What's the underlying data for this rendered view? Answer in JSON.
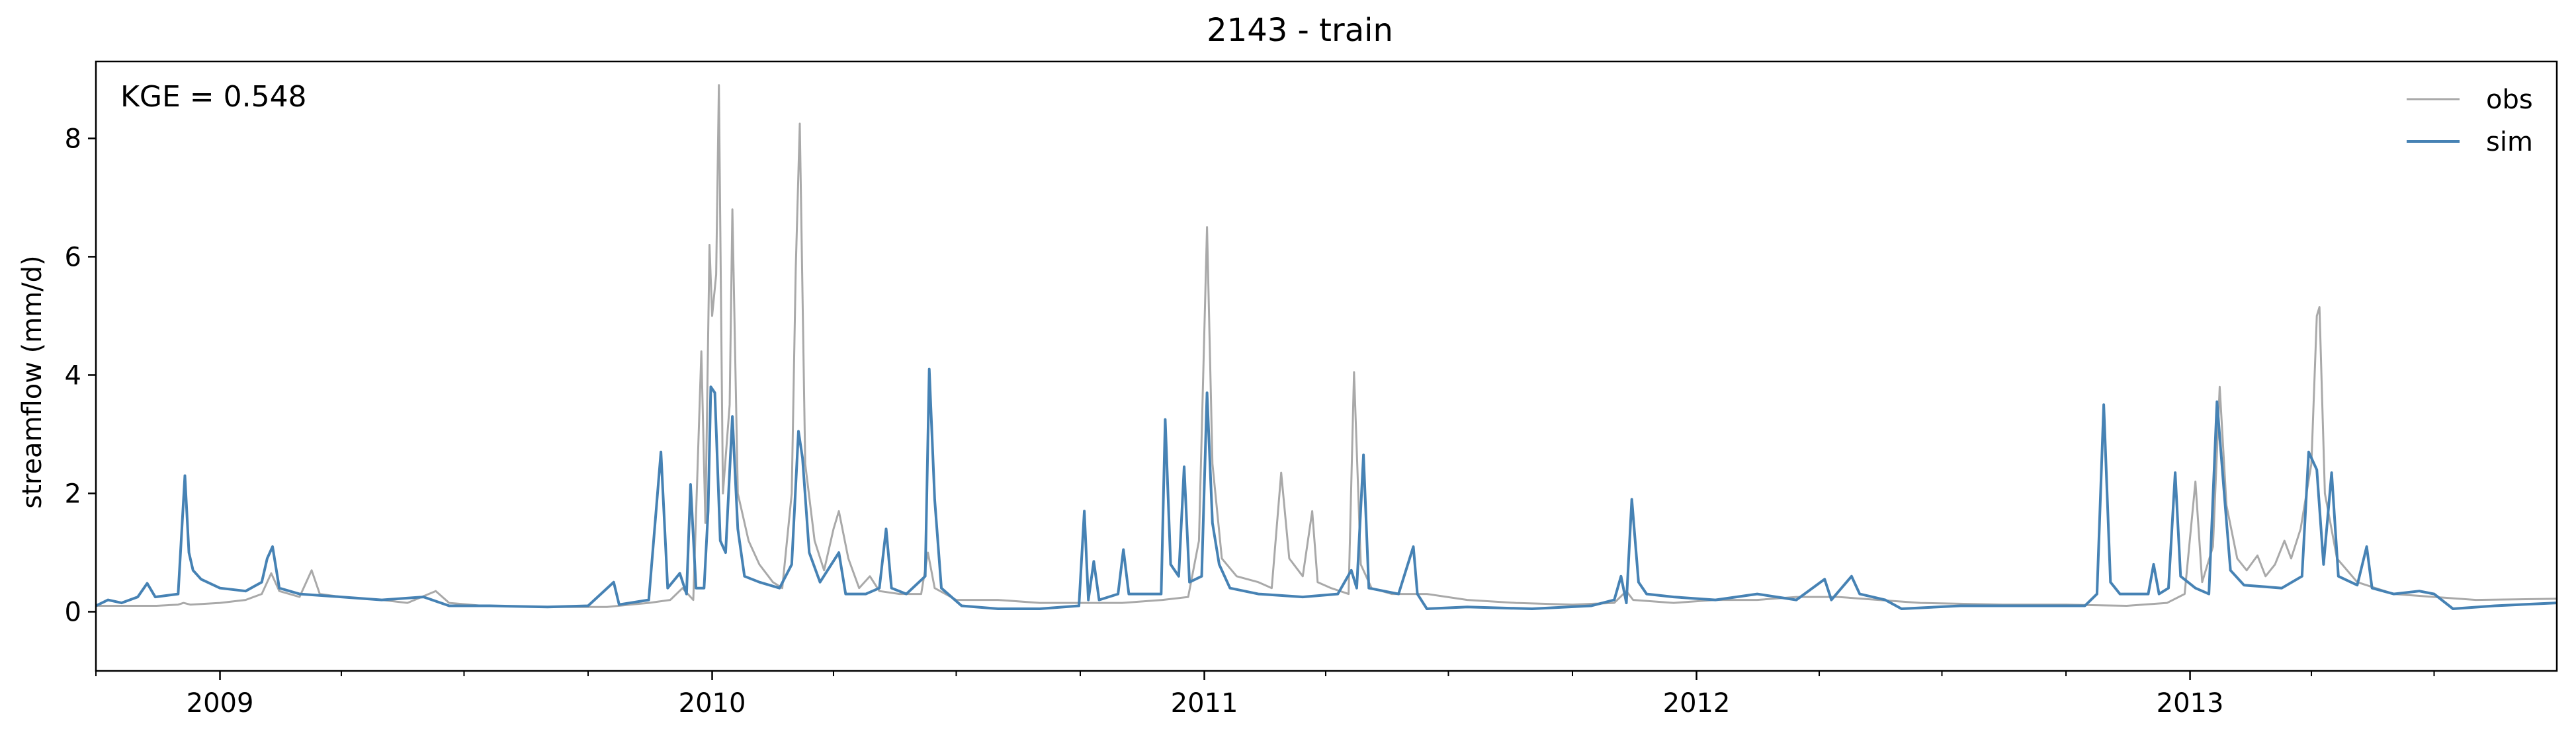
{
  "chart_data": {
    "type": "line",
    "title": "2143 - train",
    "ylabel": "streamflow (mm/d)",
    "xlabel": "",
    "annotation": "KGE = 0.548",
    "xlim": [
      "2008-10-01",
      "2013-09-30"
    ],
    "ylim": [
      -1.0,
      9.3
    ],
    "yticks": [
      0,
      2,
      4,
      6,
      8
    ],
    "xticks": [
      {
        "date": "2009-01-01",
        "label": "2009"
      },
      {
        "date": "2010-01-01",
        "label": "2010"
      },
      {
        "date": "2011-01-01",
        "label": "2011"
      },
      {
        "date": "2012-01-01",
        "label": "2012"
      },
      {
        "date": "2013-01-01",
        "label": "2013"
      }
    ],
    "grid": false,
    "legend": "top-right",
    "series": [
      {
        "name": "obs",
        "color": "#a9a9a9",
        "points": [
          [
            "2008-10-01",
            0.1
          ],
          [
            "2008-10-20",
            0.1
          ],
          [
            "2008-11-15",
            0.1
          ],
          [
            "2008-12-01",
            0.12
          ],
          [
            "2008-12-05",
            0.15
          ],
          [
            "2008-12-10",
            0.12
          ],
          [
            "2009-01-01",
            0.15
          ],
          [
            "2009-01-20",
            0.2
          ],
          [
            "2009-02-01",
            0.3
          ],
          [
            "2009-02-08",
            0.65
          ],
          [
            "2009-02-14",
            0.35
          ],
          [
            "2009-03-01",
            0.25
          ],
          [
            "2009-03-10",
            0.7
          ],
          [
            "2009-03-16",
            0.3
          ],
          [
            "2009-04-01",
            0.25
          ],
          [
            "2009-05-01",
            0.2
          ],
          [
            "2009-05-20",
            0.15
          ],
          [
            "2009-06-10",
            0.35
          ],
          [
            "2009-06-20",
            0.15
          ],
          [
            "2009-07-15",
            0.1
          ],
          [
            "2009-09-01",
            0.08
          ],
          [
            "2009-10-15",
            0.08
          ],
          [
            "2009-11-01",
            0.12
          ],
          [
            "2009-11-15",
            0.15
          ],
          [
            "2009-12-01",
            0.2
          ],
          [
            "2009-12-10",
            0.4
          ],
          [
            "2009-12-18",
            0.2
          ],
          [
            "2009-12-24",
            4.4
          ],
          [
            "2009-12-27",
            1.5
          ],
          [
            "2009-12-30",
            6.2
          ],
          [
            "2010-01-01",
            5.0
          ],
          [
            "2010-01-04",
            5.7
          ],
          [
            "2010-01-06",
            8.9
          ],
          [
            "2010-01-09",
            2.0
          ],
          [
            "2010-01-14",
            3.5
          ],
          [
            "2010-01-16",
            6.8
          ],
          [
            "2010-01-20",
            2.0
          ],
          [
            "2010-01-28",
            1.2
          ],
          [
            "2010-02-05",
            0.8
          ],
          [
            "2010-02-15",
            0.5
          ],
          [
            "2010-02-22",
            0.4
          ],
          [
            "2010-03-01",
            2.0
          ],
          [
            "2010-03-04",
            5.8
          ],
          [
            "2010-03-07",
            8.25
          ],
          [
            "2010-03-11",
            2.5
          ],
          [
            "2010-03-18",
            1.2
          ],
          [
            "2010-03-25",
            0.7
          ],
          [
            "2010-04-01",
            1.4
          ],
          [
            "2010-04-05",
            1.7
          ],
          [
            "2010-04-12",
            0.9
          ],
          [
            "2010-04-20",
            0.4
          ],
          [
            "2010-04-28",
            0.6
          ],
          [
            "2010-05-05",
            0.35
          ],
          [
            "2010-05-20",
            0.3
          ],
          [
            "2010-06-05",
            0.3
          ],
          [
            "2010-06-10",
            1.0
          ],
          [
            "2010-06-15",
            0.4
          ],
          [
            "2010-07-01",
            0.2
          ],
          [
            "2010-08-01",
            0.2
          ],
          [
            "2010-09-01",
            0.15
          ],
          [
            "2010-10-01",
            0.15
          ],
          [
            "2010-11-01",
            0.15
          ],
          [
            "2010-12-01",
            0.2
          ],
          [
            "2010-12-20",
            0.25
          ],
          [
            "2010-12-28",
            1.2
          ],
          [
            "2011-01-03",
            6.5
          ],
          [
            "2011-01-07",
            2.5
          ],
          [
            "2011-01-14",
            0.9
          ],
          [
            "2011-01-25",
            0.6
          ],
          [
            "2011-02-10",
            0.5
          ],
          [
            "2011-02-20",
            0.4
          ],
          [
            "2011-02-27",
            2.35
          ],
          [
            "2011-03-05",
            0.9
          ],
          [
            "2011-03-15",
            0.6
          ],
          [
            "2011-03-22",
            1.7
          ],
          [
            "2011-03-26",
            0.5
          ],
          [
            "2011-04-05",
            0.4
          ],
          [
            "2011-04-18",
            0.3
          ],
          [
            "2011-04-22",
            4.05
          ],
          [
            "2011-04-27",
            0.8
          ],
          [
            "2011-05-05",
            0.4
          ],
          [
            "2011-05-20",
            0.3
          ],
          [
            "2011-06-15",
            0.3
          ],
          [
            "2011-07-15",
            0.2
          ],
          [
            "2011-08-20",
            0.15
          ],
          [
            "2011-10-01",
            0.12
          ],
          [
            "2011-11-01",
            0.15
          ],
          [
            "2011-11-10",
            0.35
          ],
          [
            "2011-11-15",
            0.2
          ],
          [
            "2011-12-15",
            0.15
          ],
          [
            "2012-01-15",
            0.2
          ],
          [
            "2012-02-15",
            0.2
          ],
          [
            "2012-03-15",
            0.25
          ],
          [
            "2012-04-15",
            0.25
          ],
          [
            "2012-05-15",
            0.2
          ],
          [
            "2012-06-15",
            0.15
          ],
          [
            "2012-08-15",
            0.12
          ],
          [
            "2012-10-01",
            0.12
          ],
          [
            "2012-11-15",
            0.1
          ],
          [
            "2012-12-15",
            0.15
          ],
          [
            "2012-12-28",
            0.3
          ],
          [
            "2013-01-05",
            2.2
          ],
          [
            "2013-01-10",
            0.5
          ],
          [
            "2013-01-18",
            1.1
          ],
          [
            "2013-01-23",
            3.8
          ],
          [
            "2013-01-28",
            1.8
          ],
          [
            "2013-02-05",
            0.9
          ],
          [
            "2013-02-12",
            0.7
          ],
          [
            "2013-02-20",
            0.95
          ],
          [
            "2013-02-26",
            0.6
          ],
          [
            "2013-03-05",
            0.8
          ],
          [
            "2013-03-12",
            1.2
          ],
          [
            "2013-03-17",
            0.9
          ],
          [
            "2013-03-24",
            1.4
          ],
          [
            "2013-04-01",
            2.5
          ],
          [
            "2013-04-05",
            5.0
          ],
          [
            "2013-04-07",
            5.15
          ],
          [
            "2013-04-11",
            2.0
          ],
          [
            "2013-04-20",
            0.9
          ],
          [
            "2013-05-05",
            0.5
          ],
          [
            "2013-06-01",
            0.3
          ],
          [
            "2013-07-01",
            0.25
          ],
          [
            "2013-08-01",
            0.2
          ],
          [
            "2013-09-30",
            0.22
          ]
        ]
      },
      {
        "name": "sim",
        "color": "#4682b4",
        "points": [
          [
            "2008-10-01",
            0.1
          ],
          [
            "2008-10-10",
            0.2
          ],
          [
            "2008-10-20",
            0.15
          ],
          [
            "2008-11-01",
            0.25
          ],
          [
            "2008-11-08",
            0.48
          ],
          [
            "2008-11-14",
            0.25
          ],
          [
            "2008-12-01",
            0.3
          ],
          [
            "2008-12-06",
            2.3
          ],
          [
            "2008-12-09",
            1.0
          ],
          [
            "2008-12-12",
            0.7
          ],
          [
            "2008-12-18",
            0.55
          ],
          [
            "2009-01-01",
            0.4
          ],
          [
            "2009-01-20",
            0.35
          ],
          [
            "2009-02-01",
            0.5
          ],
          [
            "2009-02-05",
            0.9
          ],
          [
            "2009-02-09",
            1.1
          ],
          [
            "2009-02-14",
            0.4
          ],
          [
            "2009-03-01",
            0.3
          ],
          [
            "2009-04-01",
            0.25
          ],
          [
            "2009-05-01",
            0.2
          ],
          [
            "2009-06-01",
            0.25
          ],
          [
            "2009-06-20",
            0.1
          ],
          [
            "2009-07-20",
            0.1
          ],
          [
            "2009-09-01",
            0.08
          ],
          [
            "2009-10-01",
            0.1
          ],
          [
            "2009-10-20",
            0.5
          ],
          [
            "2009-10-24",
            0.12
          ],
          [
            "2009-11-15",
            0.2
          ],
          [
            "2009-11-24",
            2.7
          ],
          [
            "2009-11-29",
            0.4
          ],
          [
            "2009-12-08",
            0.65
          ],
          [
            "2009-12-13",
            0.3
          ],
          [
            "2009-12-16",
            2.15
          ],
          [
            "2009-12-20",
            0.4
          ],
          [
            "2009-12-26",
            0.4
          ],
          [
            "2009-12-29",
            1.7
          ],
          [
            "2009-12-31",
            3.8
          ],
          [
            "2010-01-03",
            3.7
          ],
          [
            "2010-01-07",
            1.2
          ],
          [
            "2010-01-11",
            1.0
          ],
          [
            "2010-01-16",
            3.3
          ],
          [
            "2010-01-20",
            1.4
          ],
          [
            "2010-01-25",
            0.6
          ],
          [
            "2010-02-05",
            0.5
          ],
          [
            "2010-02-20",
            0.4
          ],
          [
            "2010-03-01",
            0.8
          ],
          [
            "2010-03-06",
            3.05
          ],
          [
            "2010-03-09",
            2.6
          ],
          [
            "2010-03-14",
            1.0
          ],
          [
            "2010-03-22",
            0.5
          ],
          [
            "2010-04-05",
            1.0
          ],
          [
            "2010-04-10",
            0.3
          ],
          [
            "2010-04-25",
            0.3
          ],
          [
            "2010-05-05",
            0.4
          ],
          [
            "2010-05-10",
            1.4
          ],
          [
            "2010-05-14",
            0.4
          ],
          [
            "2010-05-25",
            0.3
          ],
          [
            "2010-06-08",
            0.6
          ],
          [
            "2010-06-11",
            4.1
          ],
          [
            "2010-06-15",
            1.9
          ],
          [
            "2010-06-20",
            0.4
          ],
          [
            "2010-07-05",
            0.1
          ],
          [
            "2010-08-01",
            0.05
          ],
          [
            "2010-09-01",
            0.05
          ],
          [
            "2010-09-30",
            0.1
          ],
          [
            "2010-10-04",
            1.7
          ],
          [
            "2010-10-07",
            0.2
          ],
          [
            "2010-10-11",
            0.85
          ],
          [
            "2010-10-15",
            0.2
          ],
          [
            "2010-10-29",
            0.3
          ],
          [
            "2010-11-02",
            1.05
          ],
          [
            "2010-11-06",
            0.3
          ],
          [
            "2010-11-30",
            0.3
          ],
          [
            "2010-12-03",
            3.25
          ],
          [
            "2010-12-07",
            0.8
          ],
          [
            "2010-12-13",
            0.6
          ],
          [
            "2010-12-17",
            2.45
          ],
          [
            "2010-12-21",
            0.5
          ],
          [
            "2010-12-30",
            0.6
          ],
          [
            "2011-01-03",
            3.7
          ],
          [
            "2011-01-07",
            1.5
          ],
          [
            "2011-01-12",
            0.8
          ],
          [
            "2011-01-20",
            0.4
          ],
          [
            "2011-02-10",
            0.3
          ],
          [
            "2011-03-15",
            0.25
          ],
          [
            "2011-04-10",
            0.3
          ],
          [
            "2011-04-20",
            0.7
          ],
          [
            "2011-04-24",
            0.4
          ],
          [
            "2011-04-29",
            2.65
          ],
          [
            "2011-05-03",
            0.4
          ],
          [
            "2011-05-25",
            0.3
          ],
          [
            "2011-06-05",
            1.1
          ],
          [
            "2011-06-08",
            0.3
          ],
          [
            "2011-06-15",
            0.05
          ],
          [
            "2011-07-15",
            0.08
          ],
          [
            "2011-09-01",
            0.05
          ],
          [
            "2011-10-15",
            0.1
          ],
          [
            "2011-11-01",
            0.2
          ],
          [
            "2011-11-06",
            0.6
          ],
          [
            "2011-11-10",
            0.15
          ],
          [
            "2011-11-14",
            1.9
          ],
          [
            "2011-11-19",
            0.5
          ],
          [
            "2011-11-25",
            0.3
          ],
          [
            "2011-12-15",
            0.25
          ],
          [
            "2012-01-15",
            0.2
          ],
          [
            "2012-02-15",
            0.3
          ],
          [
            "2012-03-15",
            0.2
          ],
          [
            "2012-04-05",
            0.55
          ],
          [
            "2012-04-10",
            0.2
          ],
          [
            "2012-04-25",
            0.6
          ],
          [
            "2012-05-01",
            0.3
          ],
          [
            "2012-05-20",
            0.2
          ],
          [
            "2012-06-01",
            0.05
          ],
          [
            "2012-07-15",
            0.1
          ],
          [
            "2012-09-01",
            0.1
          ],
          [
            "2012-10-15",
            0.1
          ],
          [
            "2012-10-24",
            0.3
          ],
          [
            "2012-10-29",
            3.5
          ],
          [
            "2012-11-03",
            0.5
          ],
          [
            "2012-11-10",
            0.3
          ],
          [
            "2012-12-01",
            0.3
          ],
          [
            "2012-12-05",
            0.8
          ],
          [
            "2012-12-09",
            0.3
          ],
          [
            "2012-12-16",
            0.4
          ],
          [
            "2012-12-21",
            2.35
          ],
          [
            "2012-12-25",
            0.6
          ],
          [
            "2013-01-05",
            0.4
          ],
          [
            "2013-01-15",
            0.3
          ],
          [
            "2013-01-21",
            3.55
          ],
          [
            "2013-01-26",
            2.1
          ],
          [
            "2013-01-31",
            0.7
          ],
          [
            "2013-02-10",
            0.45
          ],
          [
            "2013-03-10",
            0.4
          ],
          [
            "2013-03-25",
            0.6
          ],
          [
            "2013-03-30",
            2.7
          ],
          [
            "2013-04-05",
            2.4
          ],
          [
            "2013-04-10",
            0.8
          ],
          [
            "2013-04-16",
            2.35
          ],
          [
            "2013-04-21",
            0.6
          ],
          [
            "2013-05-05",
            0.45
          ],
          [
            "2013-05-12",
            1.1
          ],
          [
            "2013-05-16",
            0.4
          ],
          [
            "2013-06-01",
            0.3
          ],
          [
            "2013-06-20",
            0.35
          ],
          [
            "2013-07-01",
            0.3
          ],
          [
            "2013-07-15",
            0.05
          ],
          [
            "2013-08-15",
            0.1
          ],
          [
            "2013-09-30",
            0.15
          ]
        ]
      }
    ]
  }
}
